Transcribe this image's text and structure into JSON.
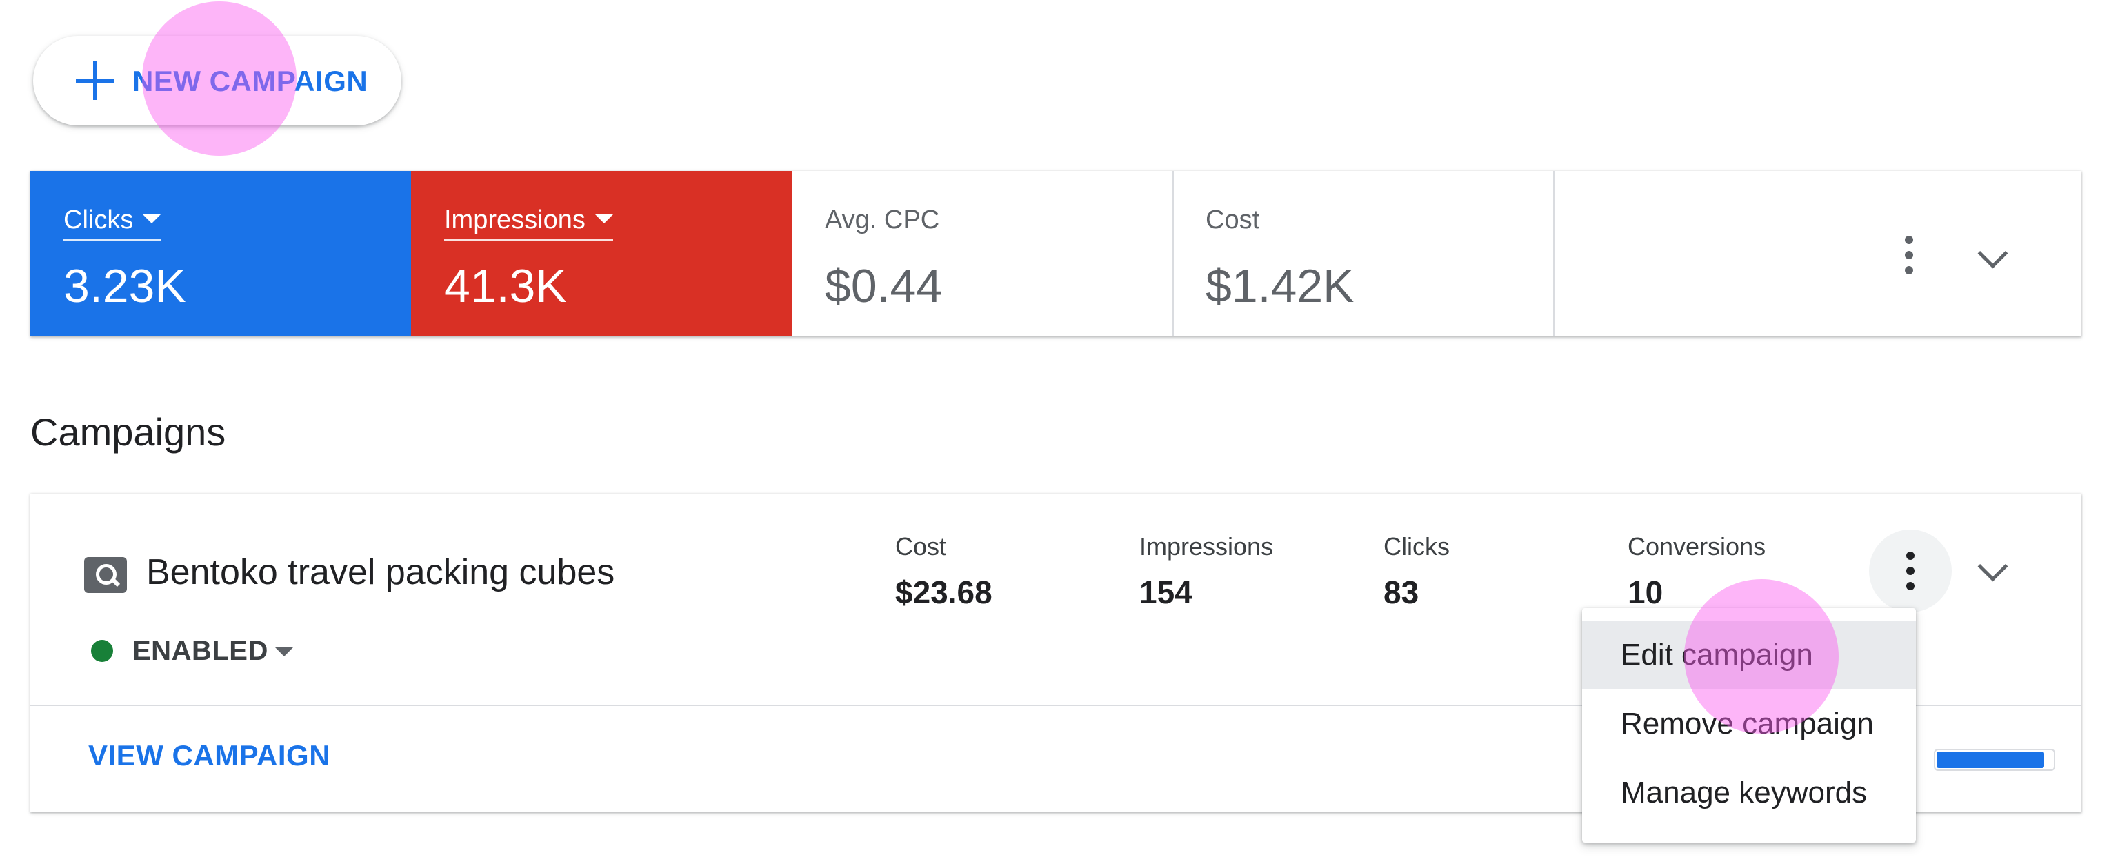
{
  "toolbar": {
    "new_campaign_label": "NEW CAMPAIGN"
  },
  "metrics": {
    "clicks": {
      "label": "Clicks",
      "value": "3.23K",
      "color": "#1a73e8"
    },
    "impressions": {
      "label": "Impressions",
      "value": "41.3K",
      "color": "#d93025"
    },
    "avg_cpc": {
      "label": "Avg. CPC",
      "value": "$0.44"
    },
    "cost": {
      "label": "Cost",
      "value": "$1.42K"
    }
  },
  "section": {
    "title": "Campaigns"
  },
  "campaign": {
    "name": "Bentoko travel packing cubes",
    "status": "ENABLED",
    "status_color": "#188038",
    "stats": [
      {
        "label": "Cost",
        "value": "$23.68"
      },
      {
        "label": "Impressions",
        "value": "154"
      },
      {
        "label": "Clicks",
        "value": "83"
      },
      {
        "label": "Conversions",
        "value": "10"
      }
    ],
    "view_label": "VIEW CAMPAIGN",
    "budget_fraction": 0.93
  },
  "menu": {
    "items": [
      {
        "label": "Edit campaign"
      },
      {
        "label": "Remove campaign"
      },
      {
        "label": "Manage keywords"
      }
    ]
  }
}
